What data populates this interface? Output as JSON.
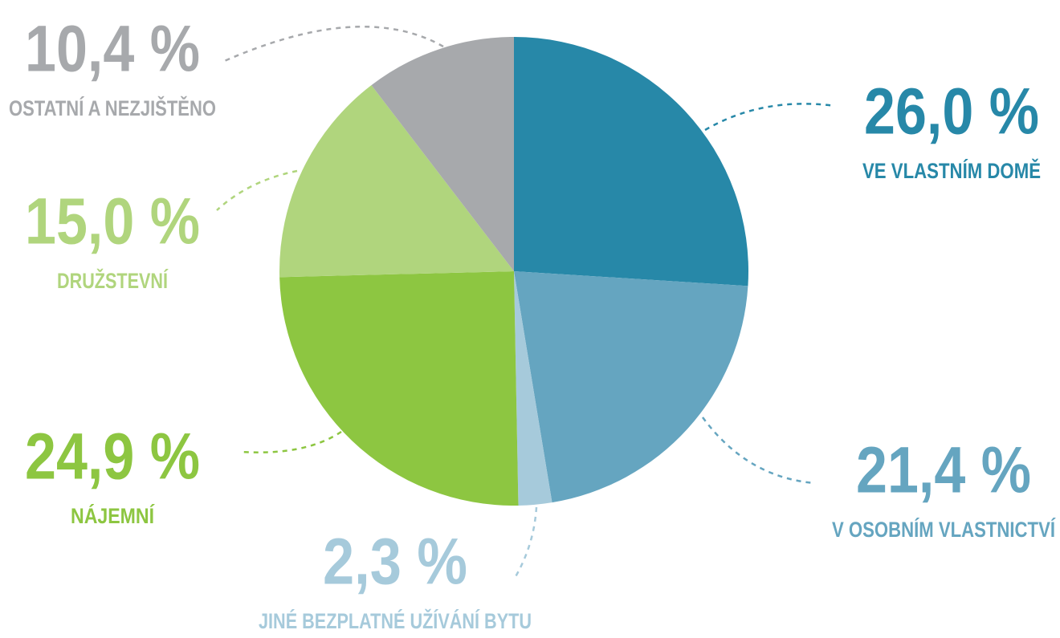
{
  "chart_data": {
    "type": "pie",
    "categories": [
      "VE VLASTNÍM DOMĚ",
      "V OSOBNÍM VLASTNICTVÍ",
      "JINÉ BEZPLATNÉ UŽÍVÁNÍ BYTU",
      "NÁJEMNÍ",
      "DRUŽSTEVNÍ",
      "OSTATNÍ A NEZJIŠTĚNO"
    ],
    "values": [
      26.0,
      21.4,
      2.3,
      24.9,
      15.0,
      10.4
    ],
    "value_labels": [
      "26,0 %",
      "21,4 %",
      "2,3 %",
      "24,9 %",
      "15,0 %",
      "10,4 %"
    ],
    "colors": [
      "#2788a8",
      "#65a5c0",
      "#a6cadb",
      "#8dc641",
      "#b0d57d",
      "#a7a9ac"
    ]
  }
}
